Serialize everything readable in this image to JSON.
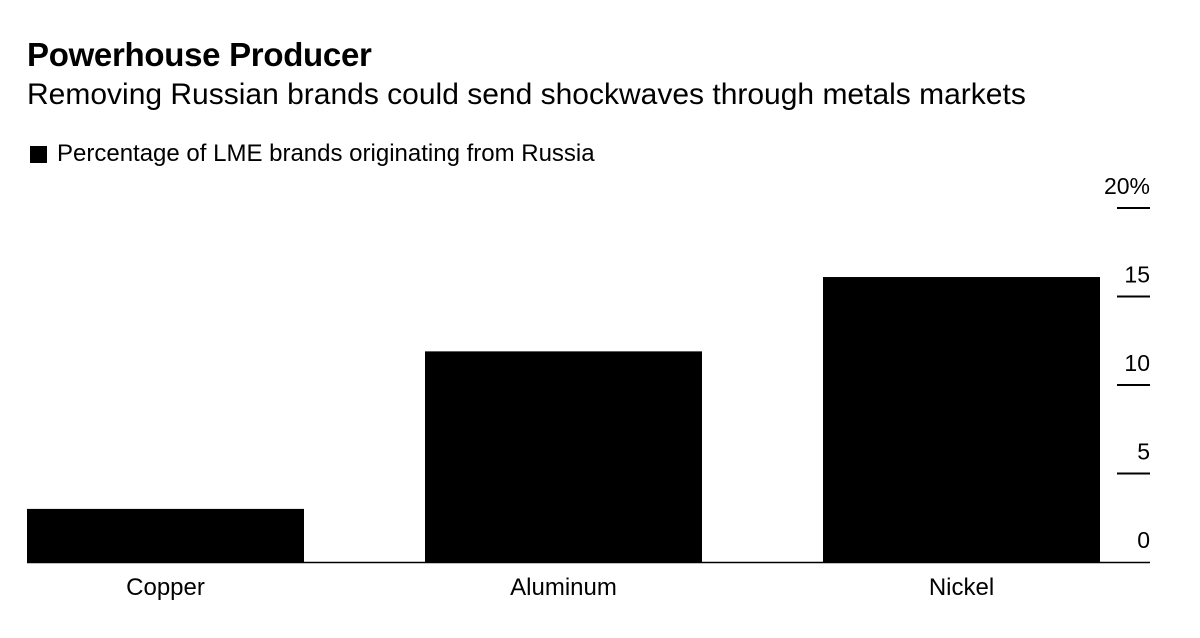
{
  "title": "Powerhouse Producer",
  "subtitle": "Removing Russian brands could send shockwaves through metals markets",
  "legend": {
    "label": "Percentage of LME brands originating from Russia",
    "color": "#000000"
  },
  "chart_data": {
    "type": "bar",
    "title": "Powerhouse Producer",
    "subtitle": "Removing Russian brands could send shockwaves through metals markets",
    "categories": [
      "Copper",
      "Aluminum",
      "Nickel"
    ],
    "series": [
      {
        "name": "Percentage of LME brands originating from Russia",
        "values": [
          3,
          11.9,
          16.1
        ],
        "color": "#000000"
      }
    ],
    "y_ticks": [
      0,
      5,
      10,
      15,
      20
    ],
    "y_tick_labels": [
      "0",
      "5",
      "10",
      "15",
      "20%"
    ],
    "ylim": [
      0,
      20
    ],
    "y_axis_side": "right",
    "xlabel": "",
    "ylabel": "",
    "grid": false,
    "legend_position": "top-left"
  }
}
